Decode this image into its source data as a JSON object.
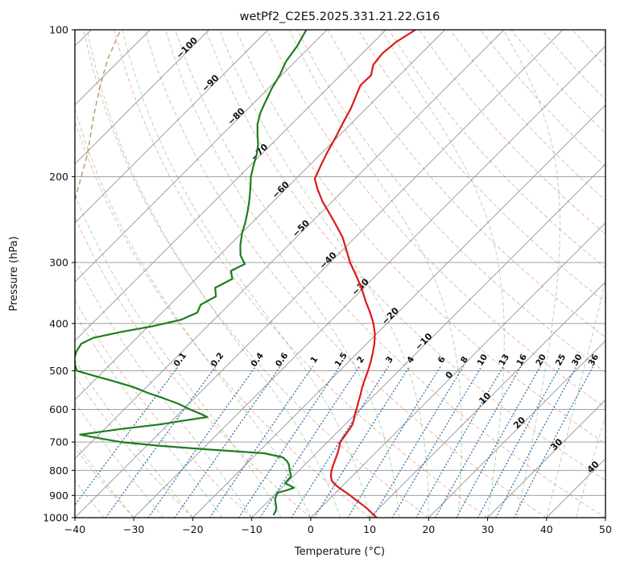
{
  "chart_data": {
    "type": "line",
    "title": "wetPf2_C2E5.2025.331.21.22.G16",
    "xlabel": "Temperature (°C)",
    "ylabel": "Pressure (hPa)",
    "x_range": [
      -40,
      50
    ],
    "x_ticks": [
      -40,
      -30,
      -20,
      -10,
      0,
      10,
      20,
      30,
      40,
      50
    ],
    "p_range": [
      100,
      1000
    ],
    "p_ticks": [
      100,
      200,
      300,
      400,
      500,
      600,
      700,
      800,
      900,
      1000
    ],
    "skew_degrees": 45,
    "grid": {
      "isotherm_min": -120,
      "isotherm_max": 50,
      "isotherm_step": 10,
      "dry_adiabats": {
        "min": -40,
        "max": 190,
        "step": 10
      },
      "moist_adiabats": {
        "min": -40,
        "max": 45,
        "step": 5
      },
      "mixing_ratios": [
        0.1,
        0.2,
        0.4,
        0.6,
        1,
        1.5,
        2,
        3,
        4,
        6,
        8,
        10,
        13,
        16,
        20,
        25,
        30,
        36
      ],
      "mixing_label_pressure": 478,
      "mixing_top_pressure": 490
    },
    "isotherm_labels": [
      {
        "t": -100,
        "p": 110
      },
      {
        "t": -90,
        "p": 130
      },
      {
        "t": -80,
        "p": 152
      },
      {
        "t": -70,
        "p": 180
      },
      {
        "t": -60,
        "p": 215
      },
      {
        "t": -50,
        "p": 258
      },
      {
        "t": -40,
        "p": 300
      },
      {
        "t": -30,
        "p": 340
      },
      {
        "t": -20,
        "p": 390
      },
      {
        "t": -10,
        "p": 440
      },
      {
        "t": 0,
        "p": 515
      },
      {
        "t": 10,
        "p": 575
      },
      {
        "t": 20,
        "p": 645
      },
      {
        "t": 30,
        "p": 715
      },
      {
        "t": 40,
        "p": 795
      }
    ],
    "series": [
      {
        "name": "temperature",
        "color": "#dd1a1a",
        "points": [
          [
            100,
            -65
          ],
          [
            106,
            -66.2
          ],
          [
            112,
            -66.6
          ],
          [
            118,
            -66.2
          ],
          [
            124,
            -64.8
          ],
          [
            130,
            -64.9
          ],
          [
            137,
            -63.8
          ],
          [
            145,
            -62.6
          ],
          [
            155,
            -61.5
          ],
          [
            165,
            -60.4
          ],
          [
            178,
            -59.2
          ],
          [
            190,
            -58
          ],
          [
            202,
            -56.8
          ],
          [
            212,
            -54.6
          ],
          [
            225,
            -51.6
          ],
          [
            238,
            -48.4
          ],
          [
            252,
            -45.2
          ],
          [
            266,
            -42.2
          ],
          [
            280,
            -39.8
          ],
          [
            300,
            -36.6
          ],
          [
            320,
            -33.2
          ],
          [
            340,
            -30.1
          ],
          [
            360,
            -27.4
          ],
          [
            380,
            -24.7
          ],
          [
            400,
            -22.3
          ],
          [
            420,
            -20.3
          ],
          [
            440,
            -18.7
          ],
          [
            460,
            -17.4
          ],
          [
            480,
            -16.2
          ],
          [
            500,
            -15.2
          ],
          [
            520,
            -14.3
          ],
          [
            540,
            -13.4
          ],
          [
            560,
            -12.4
          ],
          [
            580,
            -11.5
          ],
          [
            600,
            -10.6
          ],
          [
            615,
            -10
          ],
          [
            630,
            -9.3
          ],
          [
            645,
            -8.7
          ],
          [
            660,
            -8.4
          ],
          [
            680,
            -8.1
          ],
          [
            700,
            -7.8
          ],
          [
            720,
            -7
          ],
          [
            740,
            -6.3
          ],
          [
            760,
            -5.7
          ],
          [
            780,
            -5.1
          ],
          [
            800,
            -4.5
          ],
          [
            820,
            -3.7
          ],
          [
            840,
            -2.7
          ],
          [
            855,
            -1.5
          ],
          [
            870,
            -0.1
          ],
          [
            885,
            1.4
          ],
          [
            900,
            2.9
          ],
          [
            920,
            4.7
          ],
          [
            940,
            6.5
          ],
          [
            960,
            8.2
          ],
          [
            980,
            9.7
          ],
          [
            1000,
            11.2
          ]
        ]
      },
      {
        "name": "dewpoint",
        "color": "#1e7d1e",
        "points": [
          [
            100,
            -83.5
          ],
          [
            108,
            -82.3
          ],
          [
            116,
            -81.6
          ],
          [
            124,
            -80.3
          ],
          [
            132,
            -79.4
          ],
          [
            140,
            -78.3
          ],
          [
            148,
            -77.2
          ],
          [
            156,
            -75.8
          ],
          [
            164,
            -74
          ],
          [
            172,
            -72.2
          ],
          [
            180,
            -70.8
          ],
          [
            190,
            -69.4
          ],
          [
            200,
            -68
          ],
          [
            212,
            -66
          ],
          [
            224,
            -64.2
          ],
          [
            236,
            -62.6
          ],
          [
            248,
            -61.2
          ],
          [
            262,
            -59.8
          ],
          [
            276,
            -58.2
          ],
          [
            290,
            -56.4
          ],
          [
            302,
            -54.2
          ],
          [
            312,
            -55.4
          ],
          [
            324,
            -53.8
          ],
          [
            338,
            -55.2
          ],
          [
            352,
            -53.6
          ],
          [
            366,
            -54.8
          ],
          [
            380,
            -54
          ],
          [
            393,
            -55.6
          ],
          [
            405,
            -59.2
          ],
          [
            416,
            -63.6
          ],
          [
            428,
            -67.4
          ],
          [
            440,
            -68.4
          ],
          [
            455,
            -68
          ],
          [
            470,
            -67.2
          ],
          [
            485,
            -66
          ],
          [
            500,
            -64.6
          ],
          [
            512,
            -60.8
          ],
          [
            525,
            -56.6
          ],
          [
            540,
            -52.2
          ],
          [
            555,
            -48.8
          ],
          [
            570,
            -45
          ],
          [
            585,
            -41.6
          ],
          [
            600,
            -38.8
          ],
          [
            612,
            -36.4
          ],
          [
            622,
            -34.6
          ],
          [
            632,
            -37.8
          ],
          [
            644,
            -41.4
          ],
          [
            658,
            -47.2
          ],
          [
            668,
            -50.6
          ],
          [
            676,
            -53.2
          ],
          [
            686,
            -49.8
          ],
          [
            700,
            -45
          ],
          [
            712,
            -38
          ],
          [
            724,
            -29.6
          ],
          [
            738,
            -18.8
          ],
          [
            752,
            -15
          ],
          [
            766,
            -13.6
          ],
          [
            780,
            -12.6
          ],
          [
            800,
            -11.6
          ],
          [
            812,
            -10.9
          ],
          [
            824,
            -10.3
          ],
          [
            836,
            -10.3
          ],
          [
            850,
            -10.2
          ],
          [
            860,
            -8.9
          ],
          [
            869,
            -7.9
          ],
          [
            880,
            -8.9
          ],
          [
            889,
            -9.8
          ],
          [
            900,
            -9.6
          ],
          [
            916,
            -9.2
          ],
          [
            934,
            -8.4
          ],
          [
            952,
            -7.6
          ],
          [
            968,
            -7.1
          ],
          [
            985,
            -6.8
          ]
        ]
      }
    ],
    "aux_curve": {
      "color": "rgba(180,154,102,0.9)",
      "points": [
        [
          240,
          -92
        ],
        [
          210,
          -95.5
        ],
        [
          180,
          -99.5
        ],
        [
          150,
          -105
        ],
        [
          130,
          -109
        ],
        [
          115,
          -112.2
        ],
        [
          100,
          -115
        ]
      ]
    },
    "colors": {
      "grid_gray": "#949494",
      "dry_adiabat": "rgba(213,96,77,0.45)",
      "moist_adiabat": "rgba(76,145,76,0.40)",
      "mixing_ratio": "rgba(36,110,176,0.95)",
      "label_neg": "#3b7bb8",
      "label_zero": "#707070",
      "label_pos": "#c23b3b",
      "axis": "#000000"
    }
  }
}
